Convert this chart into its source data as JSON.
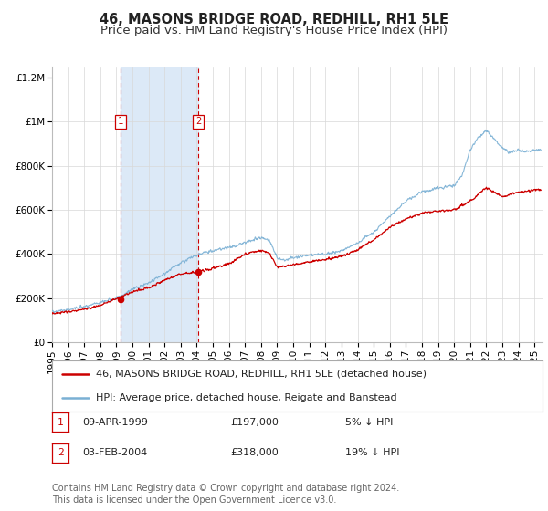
{
  "title": "46, MASONS BRIDGE ROAD, REDHILL, RH1 5LE",
  "subtitle": "Price paid vs. HM Land Registry's House Price Index (HPI)",
  "xlim": [
    1995.0,
    2025.5
  ],
  "ylim": [
    0,
    1250000
  ],
  "yticks": [
    0,
    200000,
    400000,
    600000,
    800000,
    1000000,
    1200000
  ],
  "ytick_labels": [
    "£0",
    "£200K",
    "£400K",
    "£600K",
    "£800K",
    "£1M",
    "£1.2M"
  ],
  "xticks": [
    1995,
    1996,
    1997,
    1998,
    1999,
    2000,
    2001,
    2002,
    2003,
    2004,
    2005,
    2006,
    2007,
    2008,
    2009,
    2010,
    2011,
    2012,
    2013,
    2014,
    2015,
    2016,
    2017,
    2018,
    2019,
    2020,
    2021,
    2022,
    2023,
    2024,
    2025
  ],
  "background_color": "#ffffff",
  "plot_bg_color": "#ffffff",
  "grid_color": "#d8d8d8",
  "sale1_date": 1999.27,
  "sale1_price": 197000,
  "sale2_date": 2004.09,
  "sale2_price": 318000,
  "highlight_color": "#dce9f7",
  "sale_color": "#cc0000",
  "hpi_color": "#7ab0d4",
  "vline_color": "#cc0000",
  "legend_entries": [
    "46, MASONS BRIDGE ROAD, REDHILL, RH1 5LE (detached house)",
    "HPI: Average price, detached house, Reigate and Banstead"
  ],
  "table_rows": [
    {
      "label": "1",
      "date": "09-APR-1999",
      "price": "£197,000",
      "hpi": "5% ↓ HPI"
    },
    {
      "label": "2",
      "date": "03-FEB-2004",
      "price": "£318,000",
      "hpi": "19% ↓ HPI"
    }
  ],
  "footer": "Contains HM Land Registry data © Crown copyright and database right 2024.\nThis data is licensed under the Open Government Licence v3.0.",
  "title_fontsize": 10.5,
  "subtitle_fontsize": 9.5,
  "tick_fontsize": 7.5,
  "legend_fontsize": 8,
  "table_fontsize": 8,
  "footer_fontsize": 7
}
